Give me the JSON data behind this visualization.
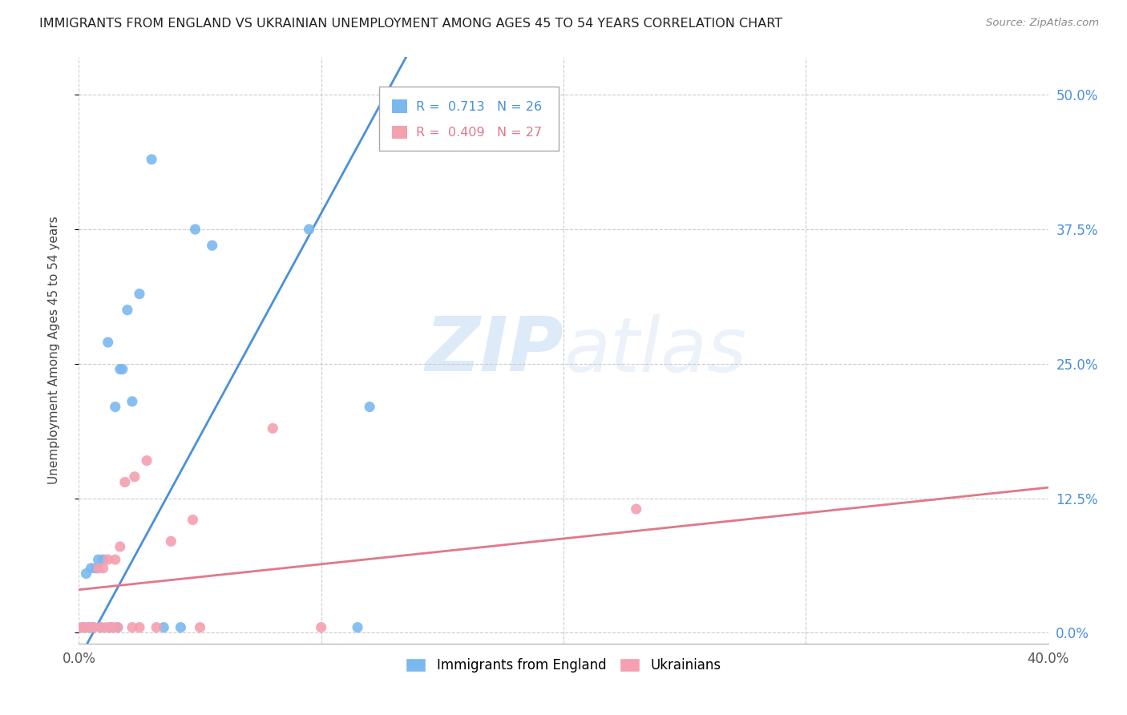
{
  "title": "IMMIGRANTS FROM ENGLAND VS UKRAINIAN UNEMPLOYMENT AMONG AGES 45 TO 54 YEARS CORRELATION CHART",
  "source": "Source: ZipAtlas.com",
  "ylabel": "Unemployment Among Ages 45 to 54 years",
  "ytick_labels": [
    "0.0%",
    "12.5%",
    "25.0%",
    "37.5%",
    "50.0%"
  ],
  "ytick_values": [
    0.0,
    0.125,
    0.25,
    0.375,
    0.5
  ],
  "xrange": [
    0.0,
    0.4
  ],
  "yrange": [
    -0.01,
    0.535
  ],
  "watermark_zip": "ZIP",
  "watermark_atlas": "atlas",
  "legend1_label": "Immigrants from England",
  "legend2_label": "Ukrainians",
  "R1": 0.713,
  "N1": 26,
  "R2": 0.409,
  "N2": 27,
  "color_blue": "#7ab8f0",
  "color_pink": "#f4a0b0",
  "color_blue_line": "#4a90d9",
  "color_pink_line": "#e07888",
  "scatter_blue": [
    [
      0.002,
      0.005
    ],
    [
      0.003,
      0.055
    ],
    [
      0.004,
      0.005
    ],
    [
      0.005,
      0.06
    ],
    [
      0.006,
      0.005
    ],
    [
      0.007,
      0.06
    ],
    [
      0.008,
      0.068
    ],
    [
      0.009,
      0.005
    ],
    [
      0.01,
      0.068
    ],
    [
      0.012,
      0.27
    ],
    [
      0.013,
      0.005
    ],
    [
      0.015,
      0.21
    ],
    [
      0.016,
      0.005
    ],
    [
      0.017,
      0.245
    ],
    [
      0.018,
      0.245
    ],
    [
      0.02,
      0.3
    ],
    [
      0.022,
      0.215
    ],
    [
      0.025,
      0.315
    ],
    [
      0.03,
      0.44
    ],
    [
      0.035,
      0.005
    ],
    [
      0.042,
      0.005
    ],
    [
      0.048,
      0.375
    ],
    [
      0.055,
      0.36
    ],
    [
      0.095,
      0.375
    ],
    [
      0.115,
      0.005
    ],
    [
      0.12,
      0.21
    ]
  ],
  "scatter_pink": [
    [
      0.001,
      0.005
    ],
    [
      0.002,
      0.005
    ],
    [
      0.004,
      0.005
    ],
    [
      0.005,
      0.005
    ],
    [
      0.006,
      0.005
    ],
    [
      0.008,
      0.06
    ],
    [
      0.009,
      0.005
    ],
    [
      0.01,
      0.06
    ],
    [
      0.011,
      0.005
    ],
    [
      0.012,
      0.068
    ],
    [
      0.013,
      0.005
    ],
    [
      0.014,
      0.005
    ],
    [
      0.015,
      0.068
    ],
    [
      0.016,
      0.005
    ],
    [
      0.017,
      0.08
    ],
    [
      0.019,
      0.14
    ],
    [
      0.022,
      0.005
    ],
    [
      0.023,
      0.145
    ],
    [
      0.025,
      0.005
    ],
    [
      0.028,
      0.16
    ],
    [
      0.032,
      0.005
    ],
    [
      0.038,
      0.085
    ],
    [
      0.047,
      0.105
    ],
    [
      0.05,
      0.005
    ],
    [
      0.08,
      0.19
    ],
    [
      0.1,
      0.005
    ],
    [
      0.23,
      0.115
    ]
  ],
  "blue_line_x": [
    -0.005,
    0.135
  ],
  "blue_line_y": [
    -0.045,
    0.535
  ],
  "pink_line_x": [
    0.0,
    0.4
  ],
  "pink_line_y": [
    0.04,
    0.135
  ],
  "xtick_positions": [
    0.0,
    0.1,
    0.2,
    0.3,
    0.4
  ],
  "xtick_labels": [
    "0.0%",
    "",
    "",
    "",
    "40.0%"
  ]
}
